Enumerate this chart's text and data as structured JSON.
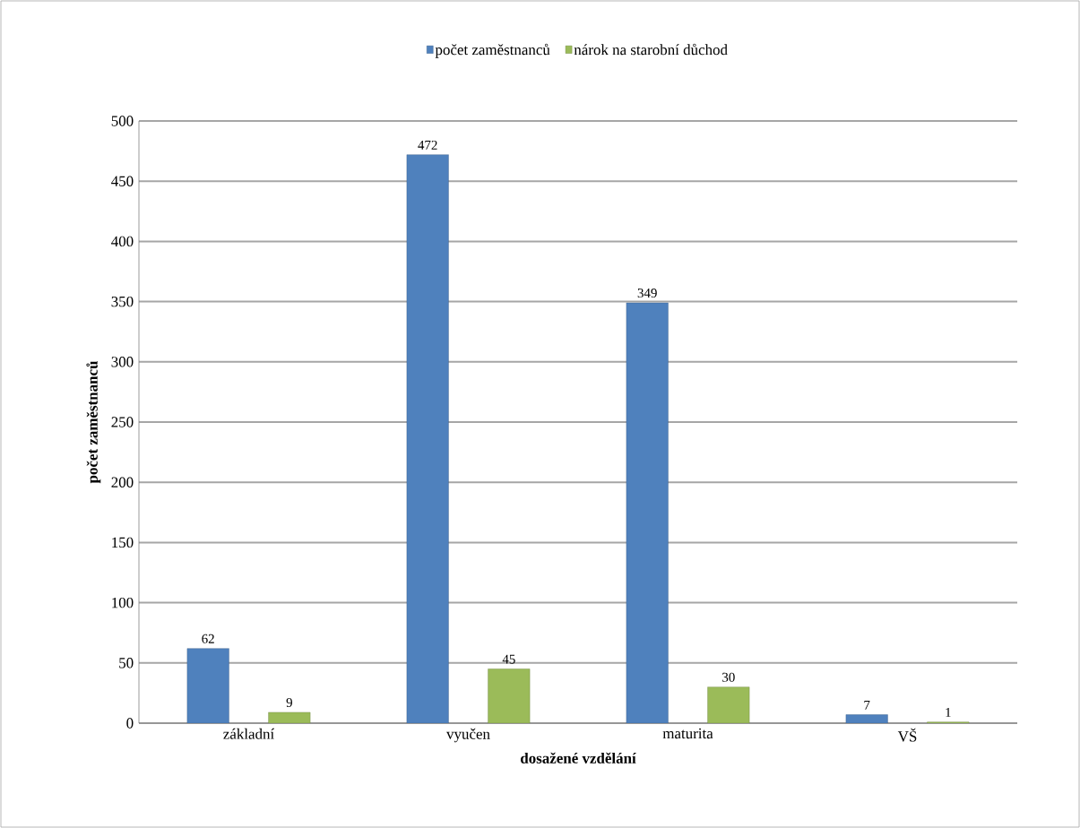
{
  "chart_data": {
    "type": "bar",
    "xlabel": "dosažené vzdělání",
    "ylabel": "počet zaměstnanců",
    "categories": [
      "základní",
      "vyučen",
      "maturita",
      "VŠ"
    ],
    "series": [
      {
        "name": "počet zaměstnanců",
        "color": "#4f81bd",
        "values": [
          62,
          472,
          349,
          7
        ]
      },
      {
        "name": "nárok na starobní důchod",
        "color": "#9bbb59",
        "values": [
          9,
          45,
          30,
          1
        ]
      }
    ],
    "ylim": [
      0,
      500
    ],
    "yticks": [
      0,
      50,
      100,
      150,
      200,
      250,
      300,
      350,
      400,
      450,
      500
    ],
    "grid": "y",
    "legend": "top",
    "data_labels": true
  }
}
